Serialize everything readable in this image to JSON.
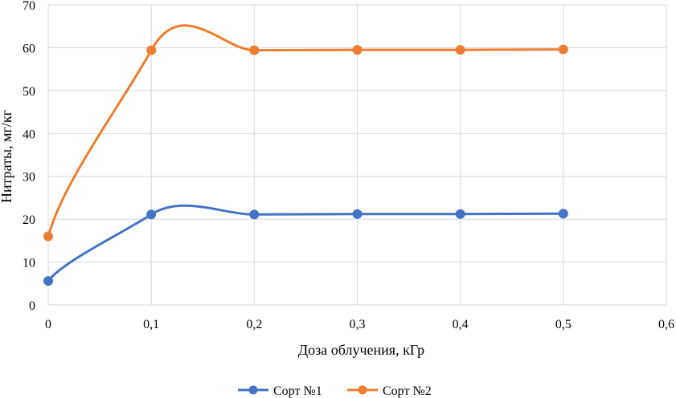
{
  "chart_data": {
    "type": "line",
    "title": "",
    "xlabel": "Доза облучения, кГр",
    "ylabel": "Нитраты,  мг/кг",
    "x": [
      0,
      0.1,
      0.2,
      0.3,
      0.4,
      0.5
    ],
    "x_tick_labels": [
      "0",
      "0,1",
      "0,2",
      "0,3",
      "0,4",
      "0,5",
      "0,6"
    ],
    "x_ticks": [
      0,
      0.1,
      0.2,
      0.3,
      0.4,
      0.5,
      0.6
    ],
    "y_tick_labels": [
      "0",
      "10",
      "20",
      "30",
      "40",
      "50",
      "60",
      "70"
    ],
    "y_ticks": [
      0,
      10,
      20,
      30,
      40,
      50,
      60,
      70
    ],
    "xlim": [
      0,
      0.6
    ],
    "ylim": [
      0,
      70
    ],
    "grid": true,
    "legend_position": "bottom-center",
    "series": [
      {
        "name": "Сорт №1",
        "color": "#4472C4",
        "values": [
          5.6,
          21.1,
          21.1,
          21.2,
          21.2,
          21.3
        ]
      },
      {
        "name": "Сорт №2",
        "color": "#ED7D31",
        "values": [
          16.0,
          59.4,
          59.4,
          59.5,
          59.5,
          59.6
        ]
      }
    ]
  }
}
